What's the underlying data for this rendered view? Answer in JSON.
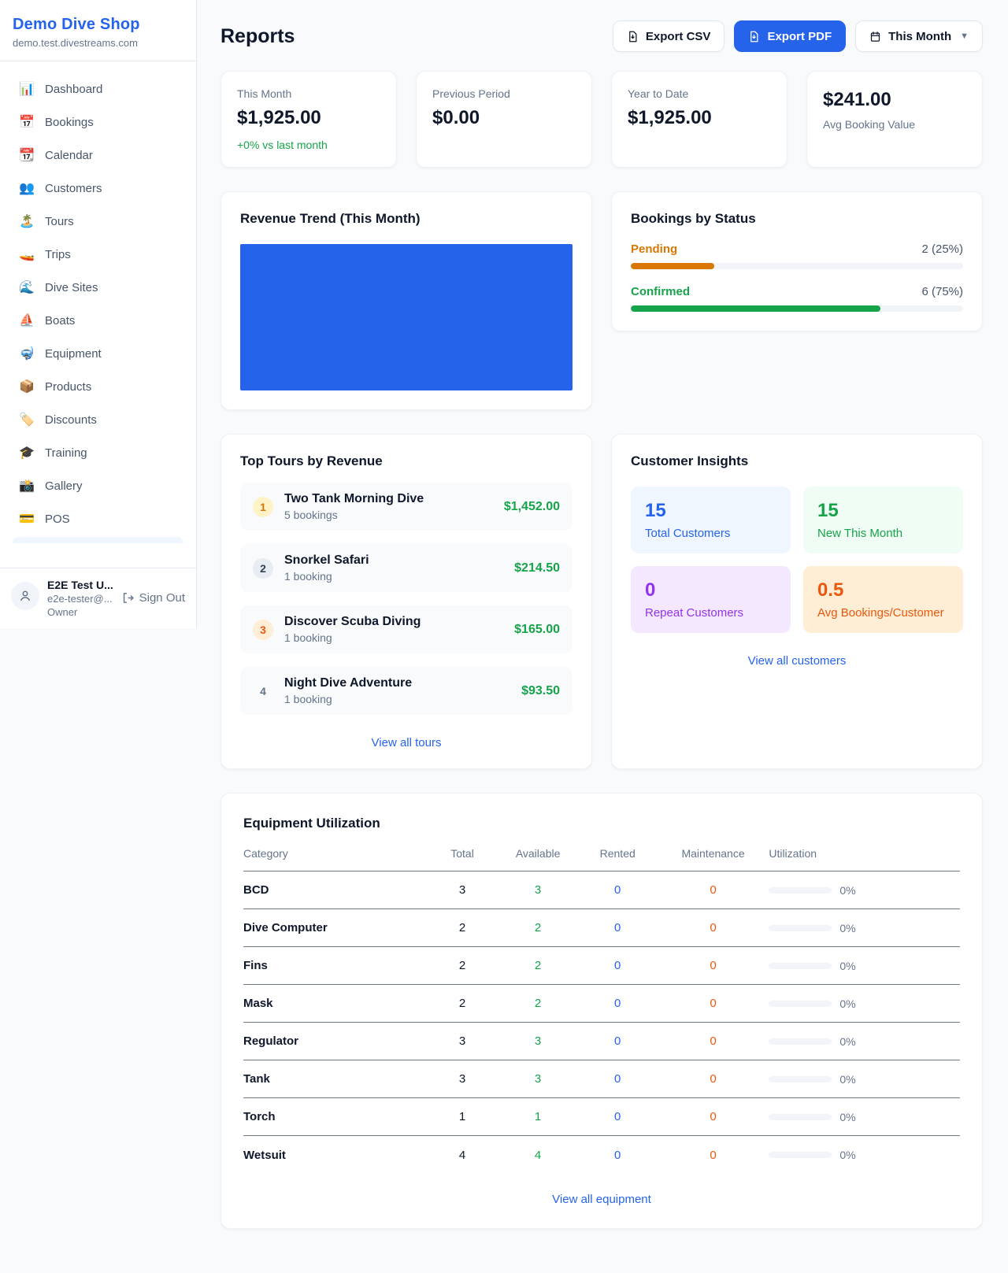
{
  "colors": {
    "accent": "#2563eb",
    "green": "#16a34a",
    "amber": "#d97706",
    "orange": "#ea580c",
    "purple": "#9333ea"
  },
  "sidebar": {
    "shop_name": "Demo Dive Shop",
    "domain": "demo.test.divestreams.com",
    "items": [
      {
        "name": "dashboard",
        "glyph": "📊",
        "label": "Dashboard"
      },
      {
        "name": "bookings",
        "glyph": "📅",
        "label": "Bookings"
      },
      {
        "name": "calendar",
        "glyph": "📆",
        "label": "Calendar"
      },
      {
        "name": "customers",
        "glyph": "👥",
        "label": "Customers"
      },
      {
        "name": "tours",
        "glyph": "🏝️",
        "label": "Tours"
      },
      {
        "name": "trips",
        "glyph": "🚤",
        "label": "Trips"
      },
      {
        "name": "dive-sites",
        "glyph": "🌊",
        "label": "Dive Sites"
      },
      {
        "name": "boats",
        "glyph": "⛵",
        "label": "Boats"
      },
      {
        "name": "equipment",
        "glyph": "🤿",
        "label": "Equipment"
      },
      {
        "name": "products",
        "glyph": "📦",
        "label": "Products"
      },
      {
        "name": "discounts",
        "glyph": "🏷️",
        "label": "Discounts"
      },
      {
        "name": "training",
        "glyph": "🎓",
        "label": "Training"
      },
      {
        "name": "gallery",
        "glyph": "📸",
        "label": "Gallery"
      },
      {
        "name": "pos",
        "glyph": "💳",
        "label": "POS"
      }
    ],
    "user": {
      "name": "E2E Test U...",
      "email": "e2e-tester@...",
      "role": "Owner",
      "signout_label": "Sign Out"
    }
  },
  "header": {
    "title": "Reports",
    "export_csv_label": "Export CSV",
    "export_pdf_label": "Export PDF",
    "period_label": "This Month"
  },
  "stats": [
    {
      "label": "This Month",
      "value": "$1,925.00",
      "delta": "+0% vs last month"
    },
    {
      "label": "Previous Period",
      "value": "$0.00"
    },
    {
      "label": "Year to Date",
      "value": "$1,925.00"
    },
    {
      "label": "Avg Booking Value",
      "value": "$241.00"
    }
  ],
  "revenue_trend": {
    "title": "Revenue Trend (This Month)"
  },
  "bookings_by_status": {
    "title": "Bookings by Status",
    "rows": [
      {
        "label": "Pending",
        "count": "2 (25%)",
        "pct": 25
      },
      {
        "label": "Confirmed",
        "count": "6 (75%)",
        "pct": 75
      }
    ]
  },
  "top_tours": {
    "title": "Top Tours by Revenue",
    "rows": [
      {
        "rank": "1",
        "name": "Two Tank Morning Dive",
        "bookings": "5 bookings",
        "revenue": "$1,452.00"
      },
      {
        "rank": "2",
        "name": "Snorkel Safari",
        "bookings": "1 booking",
        "revenue": "$214.50"
      },
      {
        "rank": "3",
        "name": "Discover Scuba Diving",
        "bookings": "1 booking",
        "revenue": "$165.00"
      },
      {
        "rank": "4",
        "name": "Night Dive Adventure",
        "bookings": "1 booking",
        "revenue": "$93.50"
      }
    ],
    "view_all": "View all tours"
  },
  "customer_insights": {
    "title": "Customer Insights",
    "cards": [
      {
        "value": "15",
        "label": "Total Customers"
      },
      {
        "value": "15",
        "label": "New This Month"
      },
      {
        "value": "0",
        "label": "Repeat Customers"
      },
      {
        "value": "0.5",
        "label": "Avg Bookings/Customer"
      }
    ],
    "view_all": "View all customers"
  },
  "equipment": {
    "title": "Equipment Utilization",
    "columns": {
      "category": "Category",
      "total": "Total",
      "available": "Available",
      "rented": "Rented",
      "maintenance": "Maintenance",
      "utilization": "Utilization"
    },
    "rows": [
      {
        "category": "BCD",
        "total": "3",
        "available": "3",
        "rented": "0",
        "maintenance": "0",
        "utilization": "0%"
      },
      {
        "category": "Dive Computer",
        "total": "2",
        "available": "2",
        "rented": "0",
        "maintenance": "0",
        "utilization": "0%"
      },
      {
        "category": "Fins",
        "total": "2",
        "available": "2",
        "rented": "0",
        "maintenance": "0",
        "utilization": "0%"
      },
      {
        "category": "Mask",
        "total": "2",
        "available": "2",
        "rented": "0",
        "maintenance": "0",
        "utilization": "0%"
      },
      {
        "category": "Regulator",
        "total": "3",
        "available": "3",
        "rented": "0",
        "maintenance": "0",
        "utilization": "0%"
      },
      {
        "category": "Tank",
        "total": "3",
        "available": "3",
        "rented": "0",
        "maintenance": "0",
        "utilization": "0%"
      },
      {
        "category": "Torch",
        "total": "1",
        "available": "1",
        "rented": "0",
        "maintenance": "0",
        "utilization": "0%"
      },
      {
        "category": "Wetsuit",
        "total": "4",
        "available": "4",
        "rented": "0",
        "maintenance": "0",
        "utilization": "0%"
      }
    ],
    "view_all": "View all equipment"
  }
}
